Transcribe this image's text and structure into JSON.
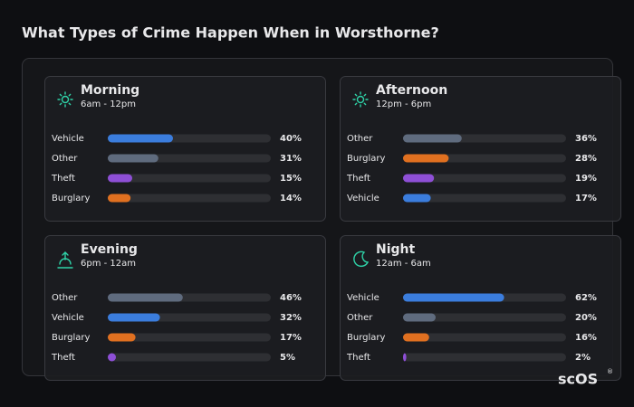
{
  "title": "What Types of Crime Happen When in Worsthorne?",
  "logo": "scOS",
  "logo_mark": "®",
  "chart_data": [
    {
      "type": "bar",
      "title": "Morning",
      "subtitle": "6am - 12pm",
      "xlim": [
        0,
        100
      ],
      "categories": [
        "Vehicle",
        "Other",
        "Theft",
        "Burglary"
      ],
      "values": [
        40,
        31,
        15,
        14
      ],
      "value_labels": [
        "40%",
        "31%",
        "15%",
        "14%"
      ],
      "colors": [
        "#3b7ddd",
        "#5f6b7e",
        "#8e4fd6",
        "#e07020"
      ]
    },
    {
      "type": "bar",
      "title": "Afternoon",
      "subtitle": "12pm - 6pm",
      "xlim": [
        0,
        100
      ],
      "categories": [
        "Other",
        "Burglary",
        "Theft",
        "Vehicle"
      ],
      "values": [
        36,
        28,
        19,
        17
      ],
      "value_labels": [
        "36%",
        "28%",
        "19%",
        "17%"
      ],
      "colors": [
        "#5f6b7e",
        "#e07020",
        "#8e4fd6",
        "#3b7ddd"
      ]
    },
    {
      "type": "bar",
      "title": "Evening",
      "subtitle": "6pm - 12am",
      "xlim": [
        0,
        100
      ],
      "categories": [
        "Other",
        "Vehicle",
        "Burglary",
        "Theft"
      ],
      "values": [
        46,
        32,
        17,
        5
      ],
      "value_labels": [
        "46%",
        "32%",
        "17%",
        "5%"
      ],
      "colors": [
        "#5f6b7e",
        "#3b7ddd",
        "#e07020",
        "#8e4fd6"
      ]
    },
    {
      "type": "bar",
      "title": "Night",
      "subtitle": "12am - 6am",
      "xlim": [
        0,
        100
      ],
      "categories": [
        "Vehicle",
        "Other",
        "Burglary",
        "Theft"
      ],
      "values": [
        62,
        20,
        16,
        2
      ],
      "value_labels": [
        "62%",
        "20%",
        "16%",
        "2%"
      ],
      "colors": [
        "#3b7ddd",
        "#5f6b7e",
        "#e07020",
        "#8e4fd6"
      ]
    }
  ]
}
